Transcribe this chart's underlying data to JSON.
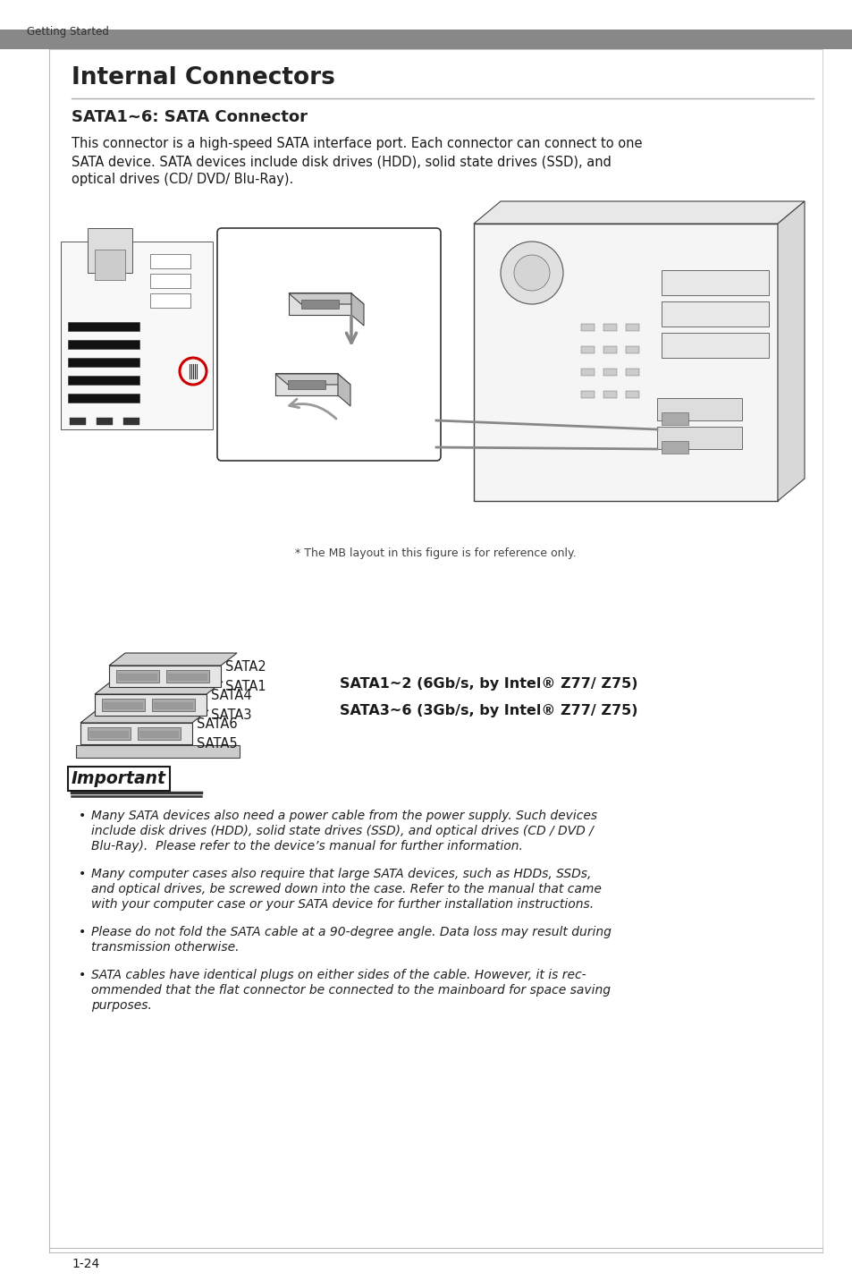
{
  "page_bg": "#ffffff",
  "outer_bg": "#f0f0f0",
  "header_bar_color": "#888888",
  "header_text": "Getting Started",
  "header_text_color": "#333333",
  "main_title": "Internal Connectors",
  "main_title_color": "#222222",
  "section_title": "SATA1~6: SATA Connector",
  "section_title_color": "#222222",
  "body_text_line1": "This connector is a high-speed SATA interface port. Each connector can connect to one",
  "body_text_line2": "SATA device. SATA devices include disk drives (HDD), solid state drives (SSD), and",
  "body_text_line3": "optical drives (CD/ DVD/ Blu-Ray).",
  "ref_note": "* The MB layout in this figure is for reference only.",
  "sata_label_sata2": "SATA2",
  "sata_label_sata1": "SATA1",
  "sata_label_sata4": "SATA4",
  "sata_label_sata3": "SATA3",
  "sata_label_sata6": "SATA6",
  "sata_label_sata5": "SATA5",
  "sata_spec1": "SATA1~2 (6Gb/s, by Intel® Z77/ Z75)",
  "sata_spec2": "SATA3~6 (3Gb/s, by Intel® Z77/ Z75)",
  "important_label": "Important",
  "bullet1_line1": "Many SATA devices also need a power cable from the power supply. Such devices",
  "bullet1_line2": "include disk drives (HDD), solid state drives (SSD), and optical drives (CD / DVD /",
  "bullet1_line3": "Blu-Ray).  Please refer to the device’s manual for further information.",
  "bullet2_line1": "Many computer cases also require that large SATA devices, such as HDDs, SSDs,",
  "bullet2_line2": "and optical drives, be screwed down into the case. Refer to the manual that came",
  "bullet2_line3": "with your computer case or your SATA device for further installation instructions.",
  "bullet3_line1": "Please do not fold the SATA cable at a 90-degree angle. Data loss may result during",
  "bullet3_line2": "transmission otherwise.",
  "bullet4_line1": "SATA cables have identical plugs on either sides of the cable. However, it is rec-",
  "bullet4_line2": "ommended that the flat connector be connected to the mainboard for space saving",
  "bullet4_line3": "purposes.",
  "page_number": "1-24",
  "divider_color": "#aaaaaa",
  "accent_color": "#cc0000",
  "text_color": "#1a1a1a",
  "italic_color": "#222222"
}
